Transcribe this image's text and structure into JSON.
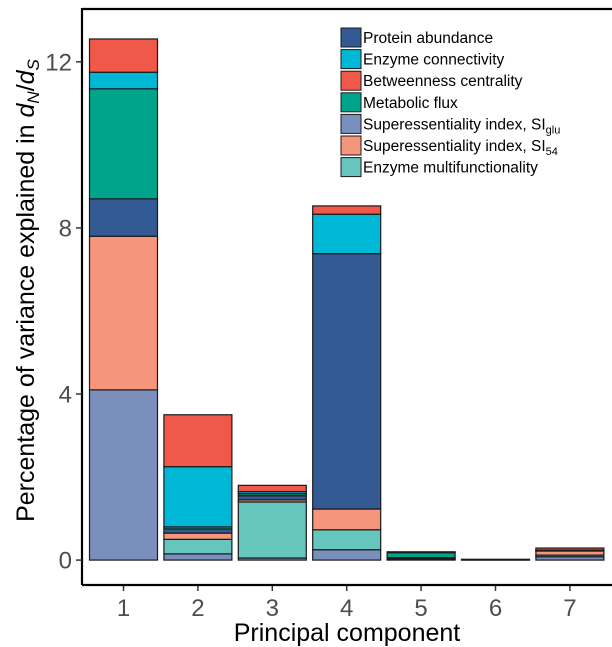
{
  "chart_data": {
    "type": "bar",
    "stacked": true,
    "xlabel": "Principal component",
    "ylabel": {
      "prefix": "Percentage of variance explained in ",
      "symbol_main_1": "d",
      "symbol_sub_1": "N",
      "symbol_sep": "/",
      "symbol_main_2": "d",
      "symbol_sub_2": "S"
    },
    "ylim": [
      -0.6,
      13.2
    ],
    "yticks": [
      0,
      4,
      8,
      12
    ],
    "categories": [
      "1",
      "2",
      "3",
      "4",
      "5",
      "6",
      "7"
    ],
    "legend_position": "top-right",
    "grid": false,
    "series": [
      {
        "name": "Superessentiality index, SI",
        "sub": "glu",
        "color": "#7b8fbd",
        "values": [
          4.1,
          0.15,
          0.05,
          0.25,
          0.0,
          0.0,
          0.08
        ]
      },
      {
        "name": "Enzyme multifunctionality",
        "sub": "",
        "color": "#66c5bc",
        "values": [
          0.0,
          0.35,
          1.35,
          0.48,
          0.02,
          0.0,
          0.04
        ]
      },
      {
        "name": "Superessentiality index, SI",
        "sub": "54",
        "color": "#f4957c",
        "values": [
          3.7,
          0.15,
          0.05,
          0.5,
          0.01,
          0.0,
          0.1
        ]
      },
      {
        "name": "Protein abundance",
        "sub": "",
        "color": "#335a93",
        "values": [
          0.9,
          0.1,
          0.1,
          6.15,
          0.03,
          0.01,
          0.01
        ]
      },
      {
        "name": "Metabolic flux",
        "sub": "",
        "color": "#00a48b",
        "values": [
          2.65,
          0.05,
          0.05,
          0.0,
          0.12,
          0.0,
          0.0
        ]
      },
      {
        "name": "Enzyme connectivity",
        "sub": "",
        "color": "#00b8d5",
        "values": [
          0.4,
          1.45,
          0.05,
          0.95,
          0.01,
          0.0,
          0.01
        ]
      },
      {
        "name": "Betweenness centrality",
        "sub": "",
        "color": "#f0584a",
        "values": [
          0.8,
          1.25,
          0.15,
          0.2,
          0.01,
          0.01,
          0.05
        ]
      }
    ],
    "legend_order": [
      3,
      5,
      6,
      4,
      0,
      2,
      1
    ]
  }
}
